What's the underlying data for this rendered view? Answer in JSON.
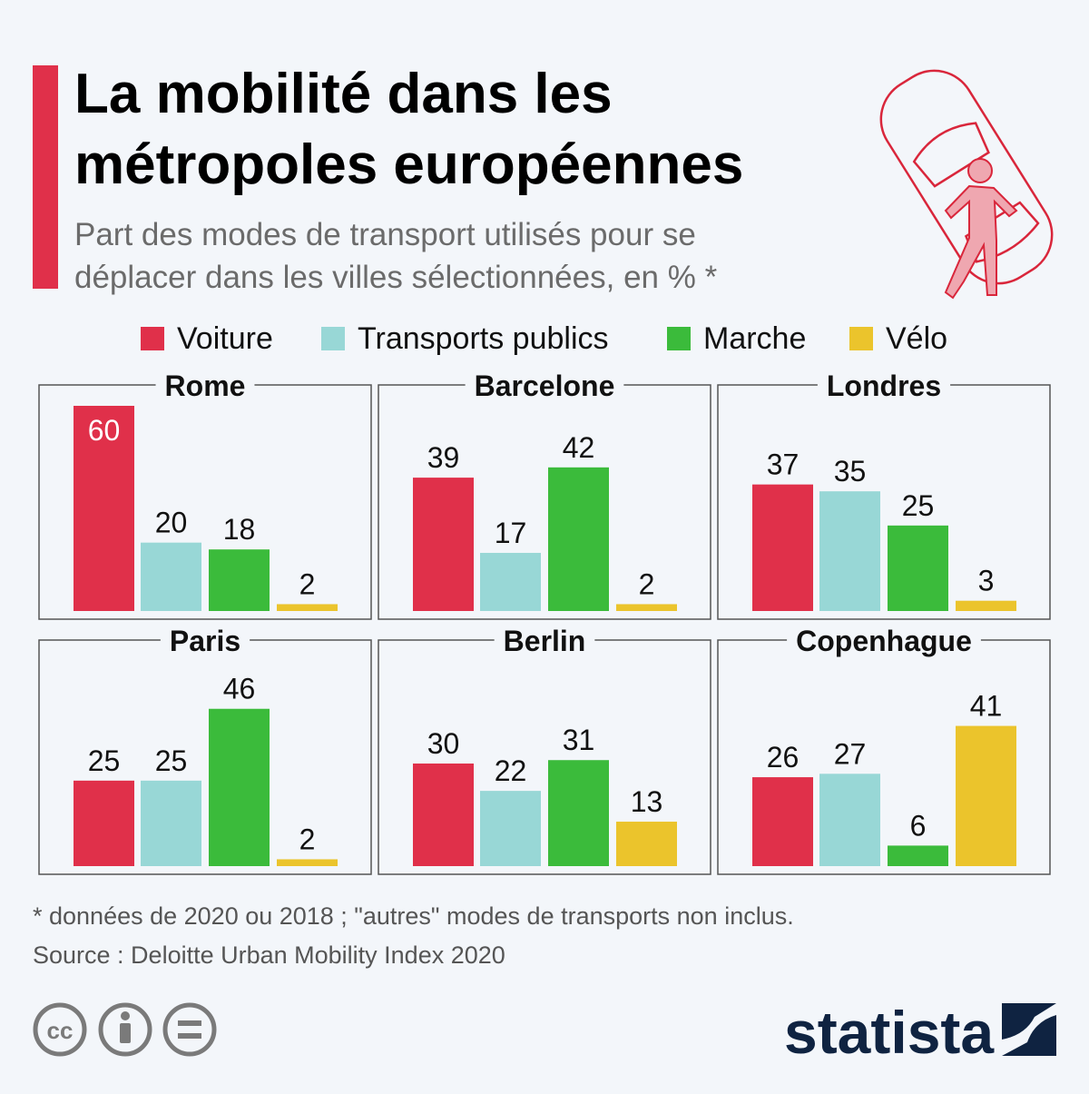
{
  "header": {
    "title_line1": "La mobilité dans les",
    "title_line2": "métropoles européennes",
    "subtitle_line1": "Part des modes de transport utilisés pour se",
    "subtitle_line2": "déplacer dans les villes sélectionnées, en % *",
    "illustration": "car-and-pedestrian-icon"
  },
  "colors": {
    "accent": "#e0304a",
    "Voiture": "#e0304a",
    "Transports publics": "#98d7d6",
    "Marche": "#3bbb3b",
    "Vélo": "#ebc42c"
  },
  "chart_data": {
    "type": "bar",
    "legend_position": "top",
    "grid": false,
    "ylim": [
      0,
      60
    ],
    "categories": [
      "Voiture",
      "Transports publics",
      "Marche",
      "Vélo"
    ],
    "legend": [
      "Voiture",
      "Transports publics",
      "Marche",
      "Vélo"
    ],
    "panels": [
      {
        "city": "Rome",
        "values": [
          60,
          20,
          18,
          2
        ]
      },
      {
        "city": "Barcelone",
        "values": [
          39,
          17,
          42,
          2
        ]
      },
      {
        "city": "Londres",
        "values": [
          37,
          35,
          25,
          3
        ]
      },
      {
        "city": "Paris",
        "values": [
          25,
          25,
          46,
          2
        ]
      },
      {
        "city": "Berlin",
        "values": [
          30,
          22,
          31,
          13
        ]
      },
      {
        "city": "Copenhague",
        "values": [
          26,
          27,
          6,
          41
        ]
      }
    ]
  },
  "footer": {
    "note": "* données de 2020 ou 2018 ; \"autres\" modes de transports non inclus.",
    "source": "Source : Deloitte Urban Mobility Index 2020",
    "license_icons": [
      "cc-icon",
      "attribution-icon",
      "no-derivatives-icon"
    ],
    "brand": "statista"
  }
}
